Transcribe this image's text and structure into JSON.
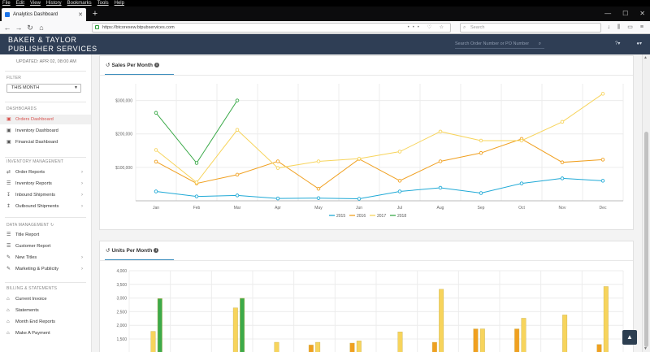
{
  "browser": {
    "menu": [
      "File",
      "Edit",
      "View",
      "History",
      "Bookmarks",
      "Tools",
      "Help"
    ],
    "tab_title": "Analytics Dashboard",
    "url": "https://btcorexew.btpubservices.com",
    "search_placeholder": "Search"
  },
  "header": {
    "brand_line1": "BAKER & TAYLOR",
    "brand_line2": "PUBLISHER SERVICES",
    "search_placeholder": "Search Order Number or PO Number"
  },
  "sidebar": {
    "updated": "UPDATED: APR 02, 08:00 AM",
    "filter_label": "FILTER",
    "filter_value": "THIS MONTH",
    "dashboards_label": "DASHBOARDS",
    "dashboards": [
      {
        "label": "Orders Dashboard",
        "active": true
      },
      {
        "label": "Inventory Dashboard"
      },
      {
        "label": "Financial Dashboard"
      }
    ],
    "inventory_label": "INVENTORY MANAGEMENT",
    "inventory": [
      {
        "label": "Order Reports"
      },
      {
        "label": "Inventory Reports"
      },
      {
        "label": "Inbound Shipments"
      },
      {
        "label": "Outbound Shipments"
      }
    ],
    "data_label": "DATA MANAGEMENT",
    "data": [
      {
        "label": "Title Report"
      },
      {
        "label": "Customer Report"
      },
      {
        "label": "New Titles"
      },
      {
        "label": "Marketing & Publicity"
      }
    ],
    "billing_label": "BILLING & STATEMENTS",
    "billing": [
      {
        "label": "Current Invoice"
      },
      {
        "label": "Statements"
      },
      {
        "label": "Month End Reports"
      },
      {
        "label": "Make A Payment"
      }
    ]
  },
  "sales_panel_title": "Sales Per Month",
  "units_panel_title": "Units Per Month",
  "colors": {
    "2015": "#1fa9d6",
    "2016": "#f0a020",
    "2017": "#f7d45c",
    "2018": "#3caa4a",
    "header": "#2f3e55"
  },
  "chart_data": [
    {
      "type": "line",
      "title": "Sales Per Month",
      "categories": [
        "Jan",
        "Feb",
        "Mar",
        "Apr",
        "May",
        "Jun",
        "Jul",
        "Aug",
        "Sep",
        "Oct",
        "Nov",
        "Dec"
      ],
      "y_ticks": [
        "$100,000",
        "$200,000",
        "$300,000"
      ],
      "ylim": [
        0,
        350000
      ],
      "legend_position": "bottom",
      "grid": true,
      "series": [
        {
          "name": "2015",
          "color": "#1fa9d6",
          "values": [
            28000,
            13000,
            16000,
            7000,
            8000,
            6000,
            28000,
            39000,
            23000,
            52000,
            67000,
            60000
          ]
        },
        {
          "name": "2016",
          "color": "#f0a020",
          "values": [
            117000,
            52000,
            78000,
            118000,
            36000,
            125000,
            60000,
            118000,
            143000,
            185000,
            115000,
            123000
          ]
        },
        {
          "name": "2017",
          "color": "#f7d45c",
          "values": [
            152000,
            55000,
            212000,
            98000,
            118000,
            126000,
            147000,
            207000,
            180000,
            180000,
            236000,
            320000
          ]
        },
        {
          "name": "2018",
          "color": "#3caa4a",
          "values": [
            263000,
            113000,
            300000,
            null,
            null,
            null,
            null,
            null,
            null,
            null,
            null,
            null
          ]
        }
      ]
    },
    {
      "type": "bar",
      "title": "Units Per Month",
      "categories": [
        "Jan",
        "Feb",
        "Mar",
        "Apr",
        "May",
        "Jun",
        "Jul",
        "Aug",
        "Sep",
        "Oct",
        "Nov",
        "Dec"
      ],
      "y_ticks": [
        "1,500",
        "2,000",
        "2,500",
        "3,000",
        "3,500",
        "4,000"
      ],
      "ylim": [
        1300,
        4000
      ],
      "series": [
        {
          "name": "2015",
          "color": "#1fa9d6",
          "values": [
            null,
            null,
            null,
            null,
            null,
            null,
            null,
            null,
            null,
            null,
            null,
            null
          ]
        },
        {
          "name": "2016",
          "color": "#f0a020",
          "values": [
            null,
            null,
            null,
            null,
            1280,
            1350,
            null,
            1380,
            1870,
            1870,
            null,
            1300
          ]
        },
        {
          "name": "2017",
          "color": "#f7d45c",
          "values": [
            1780,
            null,
            2640,
            1380,
            1380,
            1430,
            1760,
            3320,
            1870,
            2260,
            2380,
            3420
          ]
        },
        {
          "name": "2018",
          "color": "#3caa4a",
          "values": [
            2980,
            null,
            2990,
            null,
            null,
            null,
            null,
            null,
            null,
            null,
            null,
            null
          ]
        }
      ]
    }
  ]
}
